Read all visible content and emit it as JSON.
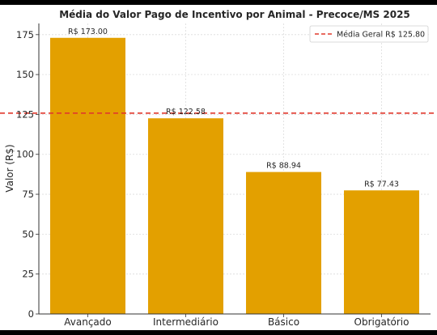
{
  "chart_data": {
    "type": "bar",
    "title": "Média do Valor Pago de Incentivo por Animal - Precoce/MS 2025",
    "xlabel": "",
    "ylabel": "Valor (R$)",
    "categories": [
      "Avançado",
      "Intermediário",
      "Básico",
      "Obrigatório"
    ],
    "values": [
      173.0,
      122.58,
      88.94,
      77.43
    ],
    "data_labels": [
      "R$ 173.00",
      "R$ 122.58",
      "R$ 88.94",
      "R$ 77.43"
    ],
    "ylim": [
      0,
      182
    ],
    "yticks": [
      0,
      25,
      50,
      75,
      100,
      125,
      150,
      175
    ],
    "bar_color": "#E3A000",
    "grid": true,
    "reference_line": {
      "value": 125.8,
      "label": "Média Geral R$ 125.80",
      "color": "#E0382C",
      "style": "dashed"
    },
    "legend_position": "top-right"
  }
}
